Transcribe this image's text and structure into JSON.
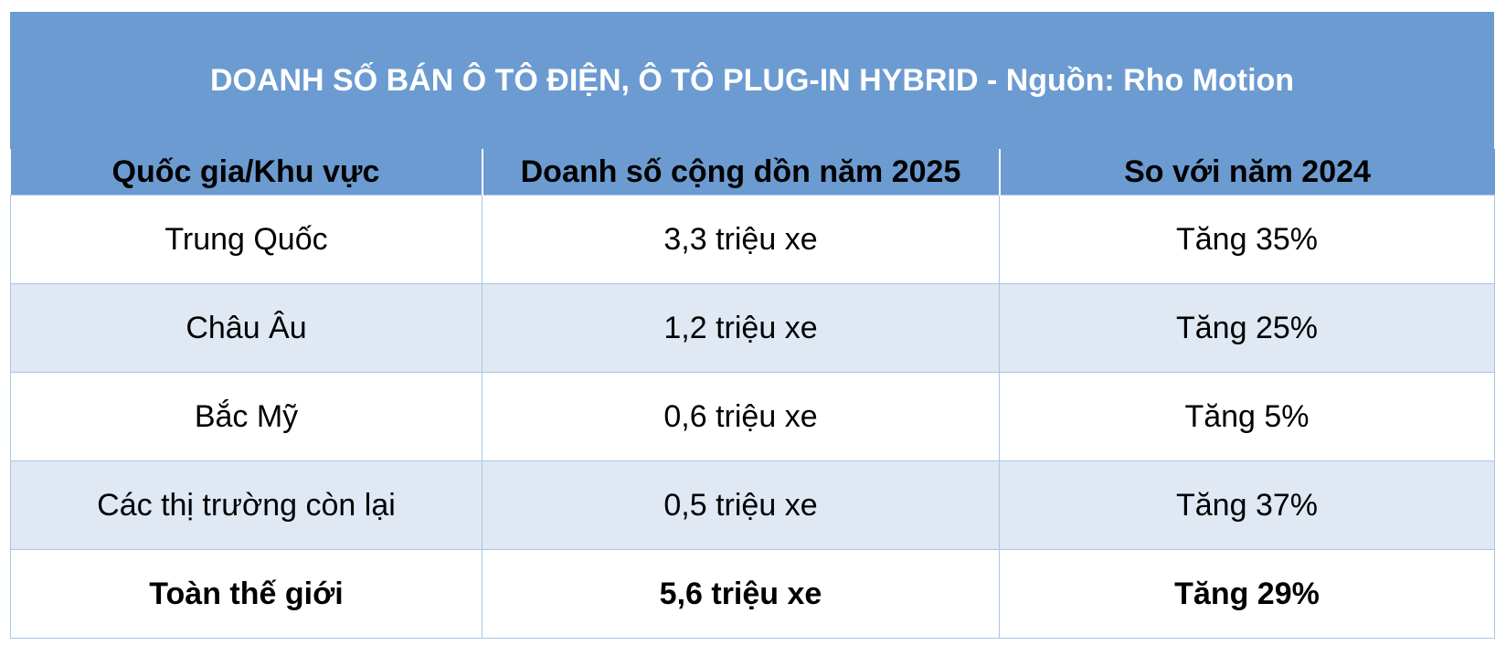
{
  "title": "DOANH SỐ BÁN Ô TÔ ĐIỆN, Ô TÔ PLUG-IN HYBRID - Nguồn: Rho Motion",
  "table": {
    "header": [
      "Quốc gia/Khu vực",
      "Doanh số cộng dồn năm 2025",
      "So với năm 2024"
    ],
    "rows": [
      [
        "Trung Quốc",
        "3,3 triệu xe",
        "Tăng 35%"
      ],
      [
        "Châu Âu",
        "1,2 triệu xe",
        "Tăng 25%"
      ],
      [
        "Bắc Mỹ",
        "0,6 triệu xe",
        "Tăng 5%"
      ],
      [
        "Các thị trường còn lại",
        "0,5 triệu xe",
        "Tăng 37%"
      ],
      [
        "Toàn thế giới",
        "5,6 triệu xe",
        "Tăng 29%"
      ]
    ]
  }
}
